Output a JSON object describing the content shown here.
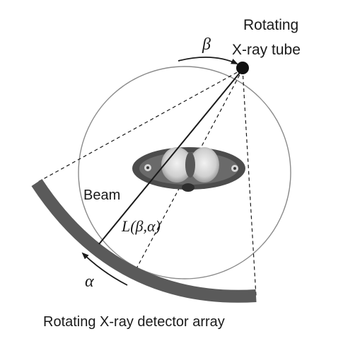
{
  "labels": {
    "tube_line1": "Rotating",
    "tube_line2": "X-ray tube",
    "beta": "β",
    "beam": "Beam",
    "ray": "L(β,α)",
    "alpha": "α",
    "detector": "Rotating X-ray detector array"
  },
  "colors": {
    "line": "#1a1a1a",
    "gantry_circle": "#8a8a8a",
    "detector": "#5a5a5a",
    "text": "#1a1a1a"
  },
  "icons": {
    "source": "x-ray-source-dot",
    "phantom": "chest-ct-slice"
  }
}
